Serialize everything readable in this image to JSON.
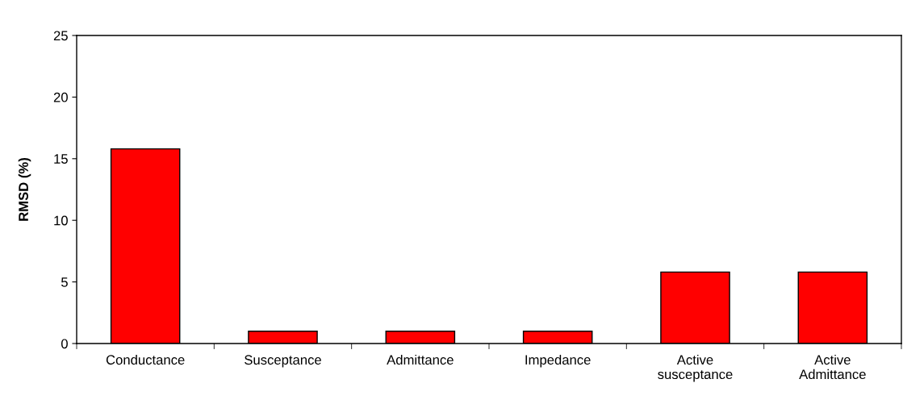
{
  "chart_data": {
    "type": "bar",
    "ylabel": "RMSD (%)",
    "categories": [
      "Conductance",
      "Susceptance",
      "Admittance",
      "Impedance",
      "Active\nsusceptance",
      "Active\nAdmittance"
    ],
    "values": [
      15.8,
      1.0,
      1.0,
      1.0,
      5.8,
      5.8
    ],
    "color": "#ff0000",
    "ylim": [
      0,
      25
    ],
    "yticks": [
      0,
      5,
      10,
      15,
      20,
      25
    ],
    "grid": false
  }
}
